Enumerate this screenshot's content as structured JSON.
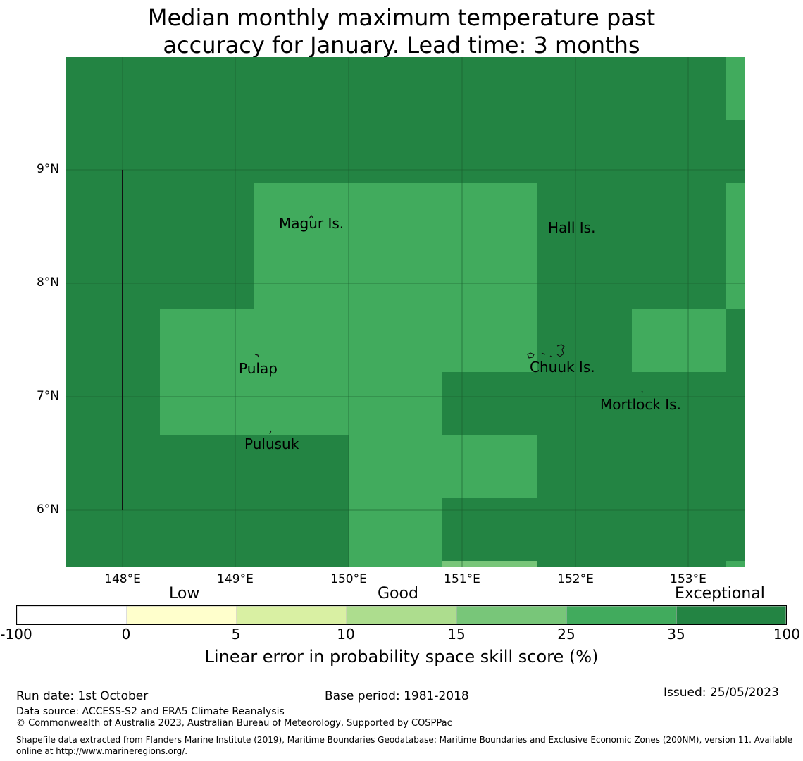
{
  "title": {
    "line1": "Median monthly maximum temperature past",
    "line2": "accuracy for January. Lead time: 3 months"
  },
  "map": {
    "lat_labels": [
      "9°N",
      "8°N",
      "7°N",
      "6°N"
    ],
    "lon_labels": [
      "148°E",
      "149°E",
      "150°E",
      "151°E",
      "152°E",
      "153°E"
    ],
    "places": [
      "Magur Is.",
      "Hall Is.",
      "Pulap",
      "Chuuk Is.",
      "Mortlock Is.",
      "Pulusuk"
    ],
    "colors": {
      "exceptional": "#238443",
      "high": "#41ab5d",
      "good": "#78c679",
      "grid": "#1a5c2e",
      "boundary": "#111111"
    }
  },
  "legend": {
    "categories": [
      "Low",
      "Good",
      "Exceptional"
    ],
    "ticks": [
      "-100",
      "0",
      "5",
      "10",
      "15",
      "25",
      "35",
      "100"
    ],
    "colors": [
      "#ffffff",
      "#ffffcc",
      "#d9f0a3",
      "#addd8e",
      "#78c679",
      "#41ab5d",
      "#238443"
    ],
    "title": "Linear error in probability space skill score (%)"
  },
  "footer": {
    "run_date": "Run date: 1st October",
    "base_period": "Base period: 1981-2018",
    "issued": "Issued: 25/05/2023",
    "data_source": "Data source: ACCESS-S2 and ERA5 Climate Reanalysis",
    "copyright": "© Commonwealth of Australia 2023, Australian Bureau of Meteorology, Supported by COSPPac",
    "shapefile_line1": "Shapefile data extracted from Flanders Marine Institute (2019), Maritime Boundaries Geodatabase: Maritime Boundaries and Exclusive Economic Zones (200NM), version 11. Available",
    "shapefile_line2": "online at http://www.marineregions.org/."
  }
}
